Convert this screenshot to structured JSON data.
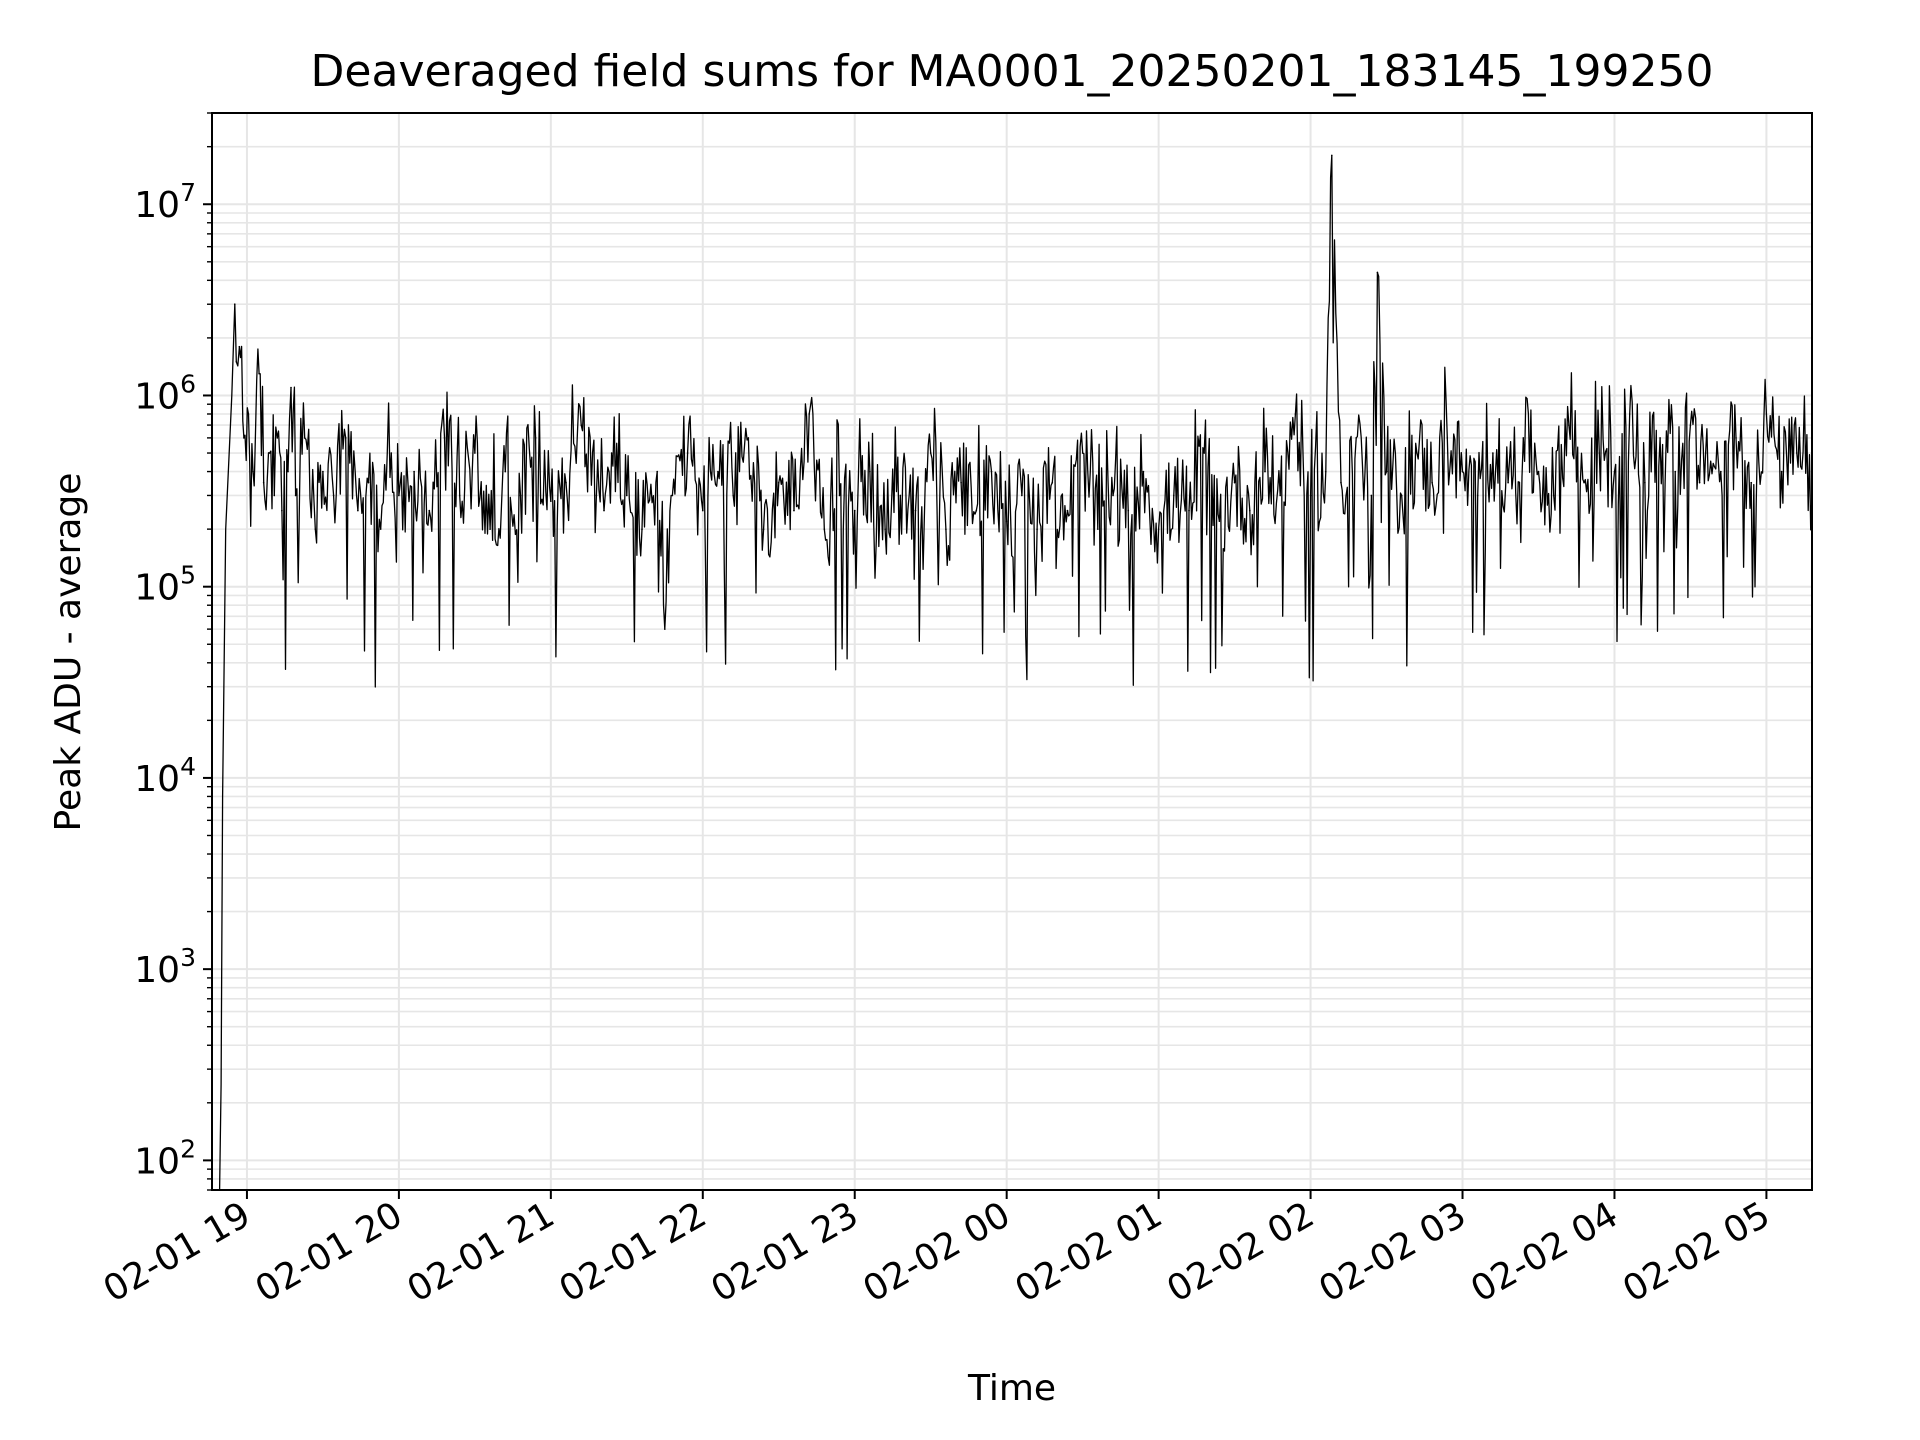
{
  "chart_data": {
    "type": "line",
    "title": "Deaveraged field sums for MA0001_20250201_183145_199250",
    "xlabel": "Time",
    "ylabel": "Peak ADU - average",
    "yscale": "log",
    "ylim": [
      70,
      30000000
    ],
    "xlim_hours": [
      18.77,
      29.3
    ],
    "x_ticks": [
      {
        "label": "02-01 19",
        "hour": 19
      },
      {
        "label": "02-01 20",
        "hour": 20
      },
      {
        "label": "02-01 21",
        "hour": 21
      },
      {
        "label": "02-01 22",
        "hour": 22
      },
      {
        "label": "02-01 23",
        "hour": 23
      },
      {
        "label": "02-02 00",
        "hour": 24
      },
      {
        "label": "02-02 01",
        "hour": 25
      },
      {
        "label": "02-02 02",
        "hour": 26
      },
      {
        "label": "02-02 03",
        "hour": 27
      },
      {
        "label": "02-02 04",
        "hour": 28
      },
      {
        "label": "02-02 05",
        "hour": 29
      }
    ],
    "y_ticks": [
      {
        "base": "10",
        "exp": "2",
        "value": 100
      },
      {
        "base": "10",
        "exp": "3",
        "value": 1000
      },
      {
        "base": "10",
        "exp": "4",
        "value": 10000
      },
      {
        "base": "10",
        "exp": "5",
        "value": 100000
      },
      {
        "base": "10",
        "exp": "6",
        "value": 1000000
      },
      {
        "base": "10",
        "exp": "7",
        "value": 10000000
      }
    ],
    "grid": true,
    "legend": "none",
    "line_color": "#000000",
    "grid_color": "#e6e6e6",
    "series": [
      {
        "x_hours": [
          18.92,
          18.93,
          18.95,
          18.98,
          19.01,
          19.04,
          19.08,
          19.11,
          19.15,
          19.18,
          19.2,
          19.23,
          19.27,
          19.29,
          19.32,
          19.38,
          19.45,
          19.5,
          19.57,
          19.65,
          19.73,
          19.8,
          19.88,
          19.95,
          20.0,
          20.1,
          20.2,
          20.3,
          20.4,
          20.5,
          20.6,
          20.7,
          20.8,
          20.9,
          21.0,
          21.1,
          21.2,
          21.3,
          21.35,
          21.4,
          21.5,
          21.6,
          21.7,
          21.75,
          21.8,
          21.9,
          22.0,
          22.1,
          22.2,
          22.3,
          22.4,
          22.5,
          22.6,
          22.7,
          22.8,
          22.9,
          23.0,
          23.1,
          23.2,
          23.3,
          23.4,
          23.5,
          23.6,
          23.7,
          23.8,
          23.9,
          24.0,
          24.1,
          24.2,
          24.3,
          24.4,
          24.5,
          24.6,
          24.7,
          24.8,
          24.9,
          25.0,
          25.1,
          25.2,
          25.3,
          25.4,
          25.5,
          25.6,
          25.7,
          25.8,
          25.9,
          26.0,
          26.1,
          26.14,
          26.2,
          26.3,
          26.4,
          26.44,
          26.5,
          26.6,
          26.7,
          26.8,
          26.9,
          27.0,
          27.1,
          27.2,
          27.3,
          27.4,
          27.5,
          27.6,
          27.7,
          27.8,
          27.9,
          28.0,
          28.1,
          28.2,
          28.3,
          28.4,
          28.5,
          28.56,
          28.6,
          28.7,
          28.8,
          28.9,
          29.0,
          29.1,
          29.2,
          29.3
        ],
        "values": [
          3000000,
          1500000,
          1800000,
          600000,
          800000,
          400000,
          1300000,
          350000,
          500000,
          300000,
          600000,
          250000,
          400000,
          1100000,
          300000,
          600000,
          200000,
          400000,
          300000,
          600000,
          250000,
          350000,
          200000,
          500000,
          300000,
          400000,
          250000,
          600000,
          300000,
          500000,
          200000,
          400000,
          300000,
          600000,
          280000,
          350000,
          700000,
          300000,
          250000,
          500000,
          300000,
          200000,
          400000,
          60000,
          300000,
          500000,
          250000,
          400000,
          300000,
          600000,
          200000,
          350000,
          250000,
          800000,
          200000,
          300000,
          250000,
          400000,
          200000,
          300000,
          250000,
          500000,
          200000,
          350000,
          250000,
          400000,
          220000,
          300000,
          200000,
          350000,
          250000,
          500000,
          200000,
          300000,
          250000,
          400000,
          200000,
          300000,
          250000,
          500000,
          220000,
          350000,
          250000,
          400000,
          300000,
          800000,
          300000,
          400000,
          18000000,
          350000,
          600000,
          300000,
          4400000,
          400000,
          300000,
          500000,
          350000,
          600000,
          400000,
          300000,
          500000,
          350000,
          600000,
          400000,
          300000,
          700000,
          350000,
          500000,
          400000,
          800000,
          350000,
          600000,
          400000,
          700000,
          350000,
          500000,
          400000,
          600000,
          350000,
          800000,
          400000,
          500000,
          300000
        ]
      }
    ]
  }
}
